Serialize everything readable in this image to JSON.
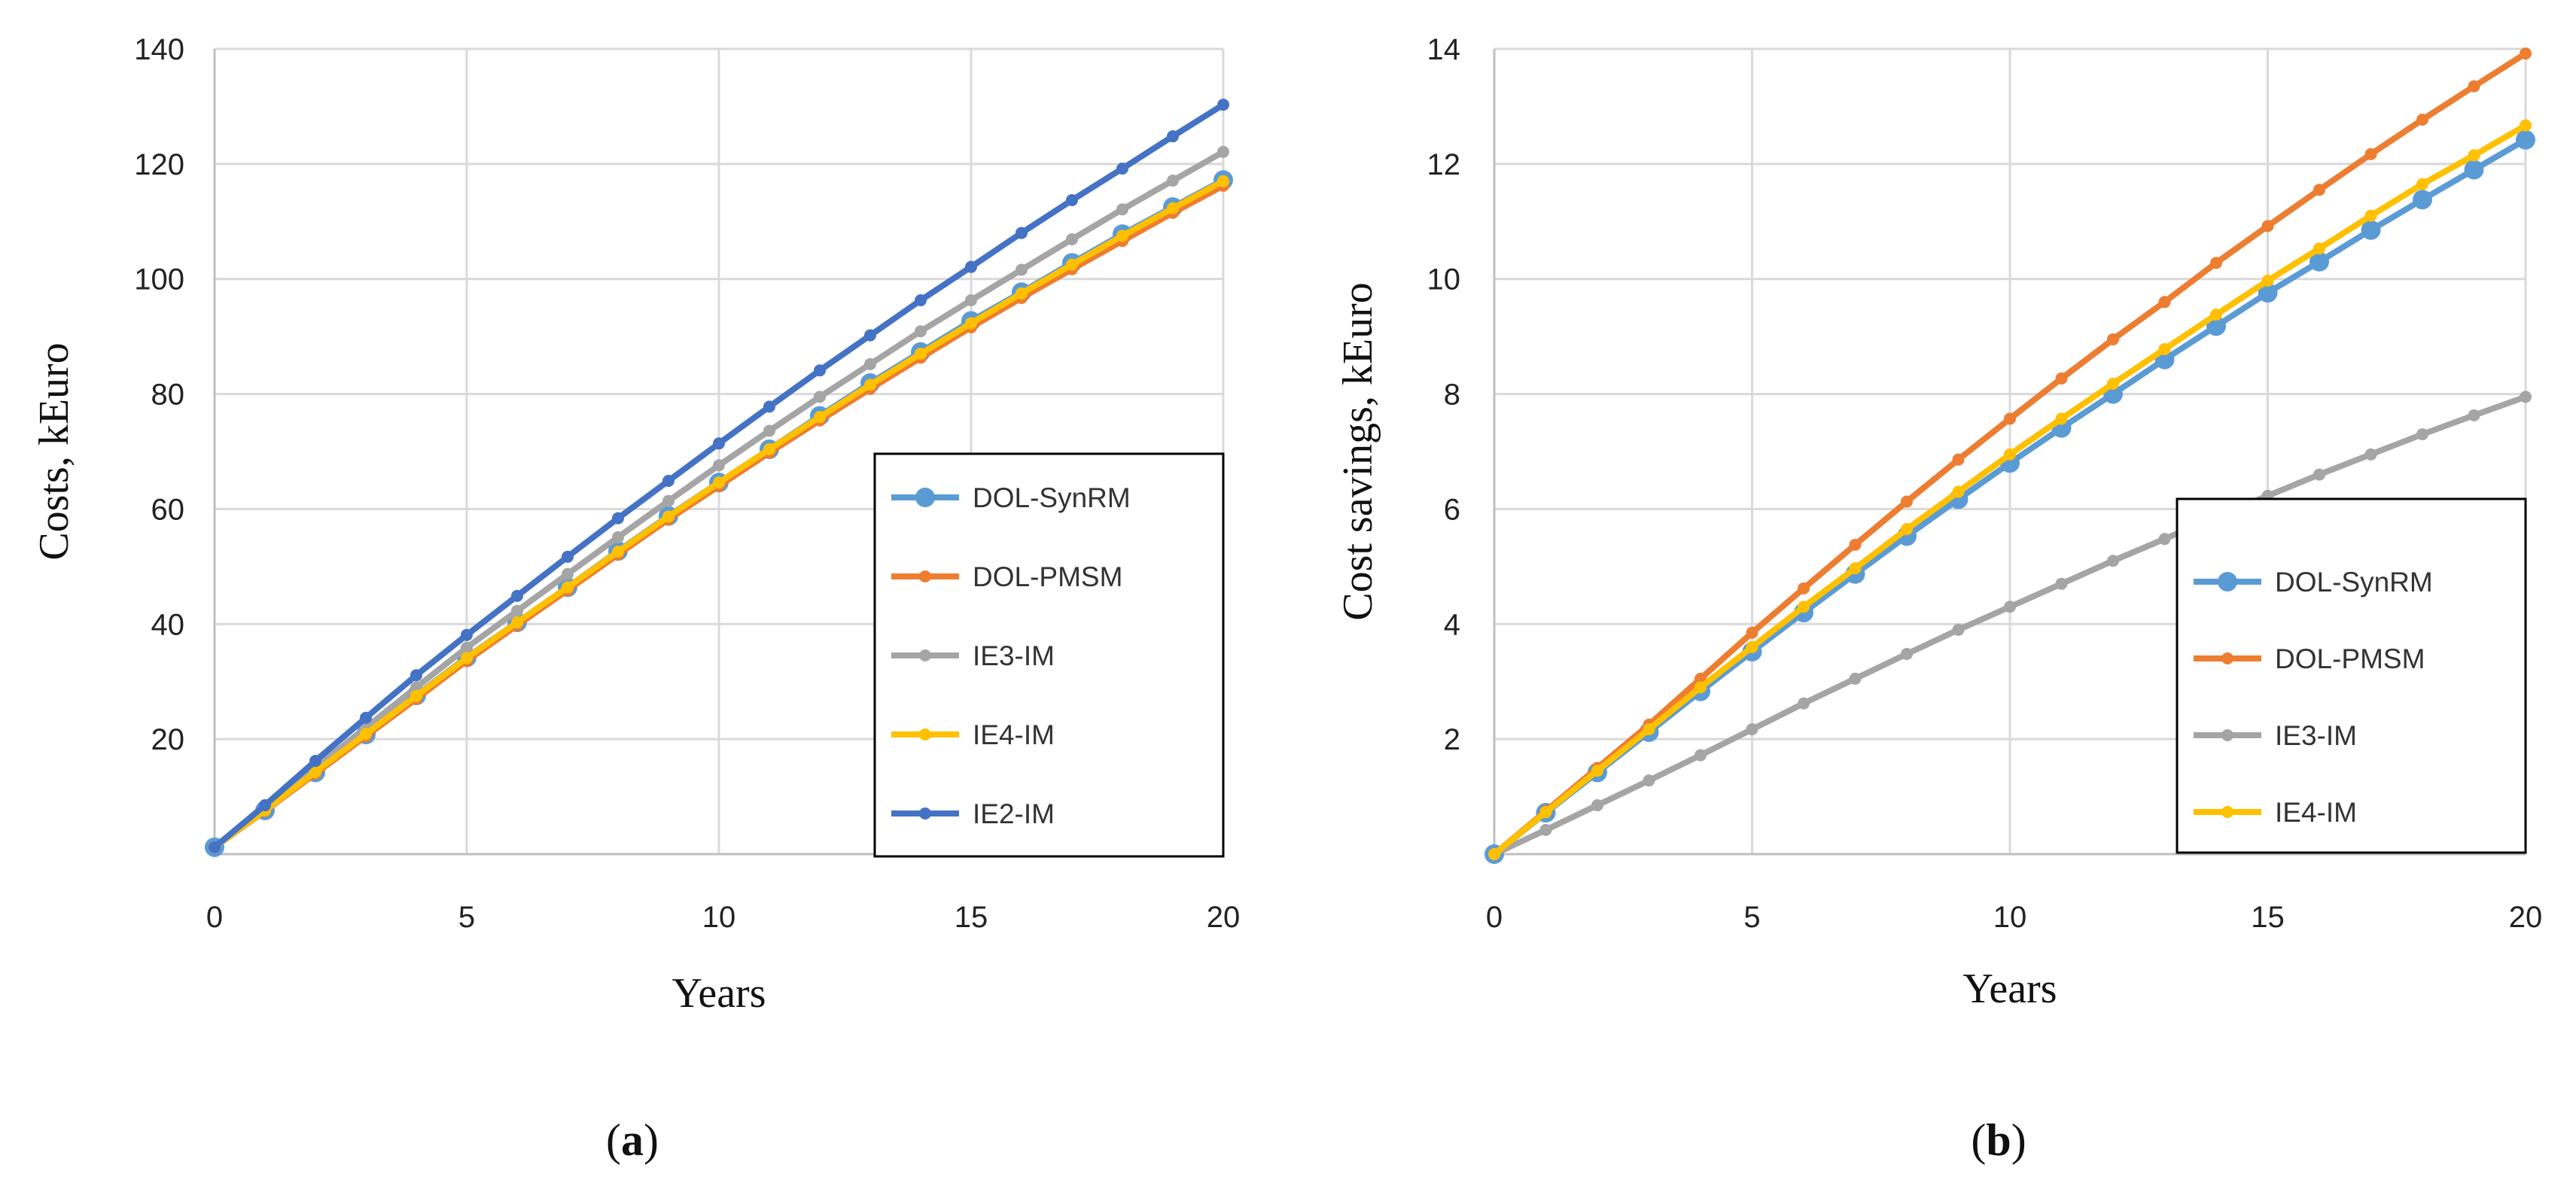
{
  "chart_data": [
    {
      "type": "line",
      "panel_label_open": "(",
      "panel_label_letter": "a",
      "panel_label_close": ")",
      "xlabel": "Years",
      "ylabel": "Costs, kEuro",
      "xlim": [
        0,
        20
      ],
      "ylim": [
        0,
        140
      ],
      "xticks": [
        0,
        5,
        10,
        15,
        20
      ],
      "yticks": [
        20,
        40,
        60,
        80,
        100,
        120,
        140
      ],
      "grid": true,
      "legend_position": "bottom-right",
      "x": [
        0,
        1,
        2,
        3,
        4,
        5,
        6,
        7,
        8,
        9,
        10,
        11,
        12,
        13,
        14,
        15,
        16,
        17,
        18,
        19,
        20
      ],
      "series": [
        {
          "name": "DOL-SynRM",
          "color": "#5B9BD5",
          "marker": "large-circle",
          "values": [
            1.2,
            7.6,
            14.2,
            20.8,
            27.6,
            34.2,
            40.3,
            46.4,
            52.7,
            58.8,
            64.6,
            70.4,
            76.2,
            81.9,
            87.3,
            92.7,
            97.7,
            102.8,
            107.8,
            112.5,
            117.2
          ]
        },
        {
          "name": "DOL-PMSM",
          "color": "#ED7D31",
          "marker": "small-circle",
          "values": [
            1.2,
            7.5,
            14.0,
            20.5,
            27.0,
            33.6,
            39.8,
            45.9,
            52.1,
            58.2,
            64.0,
            69.8,
            75.4,
            80.9,
            86.3,
            91.6,
            96.7,
            101.7,
            106.6,
            111.5,
            116.2
          ]
        },
        {
          "name": "IE3-IM",
          "color": "#A5A5A5",
          "marker": "small-circle",
          "values": [
            1.2,
            7.9,
            15.0,
            22.0,
            29.0,
            35.9,
            42.3,
            48.7,
            55.1,
            61.4,
            67.6,
            73.6,
            79.5,
            85.2,
            90.9,
            96.3,
            101.6,
            106.9,
            112.1,
            117.1,
            122.1
          ]
        },
        {
          "name": "IE4-IM",
          "color": "#FFC000",
          "marker": "small-circle",
          "values": [
            1.2,
            7.6,
            14.3,
            20.9,
            27.5,
            34.1,
            40.3,
            46.4,
            52.6,
            58.7,
            64.6,
            70.4,
            76.0,
            81.6,
            87.0,
            92.3,
            97.5,
            102.5,
            107.5,
            112.3,
            117.0
          ]
        },
        {
          "name": "IE2-IM",
          "color": "#4472C4",
          "marker": "small-circle",
          "values": [
            1.2,
            8.5,
            16.2,
            23.7,
            31.1,
            38.1,
            44.9,
            51.7,
            58.4,
            64.9,
            71.4,
            77.8,
            84.1,
            90.2,
            96.3,
            102.1,
            108.0,
            113.7,
            119.2,
            124.8,
            130.3
          ]
        }
      ]
    },
    {
      "type": "line",
      "panel_label_open": "(",
      "panel_label_letter": "b",
      "panel_label_close": ")",
      "xlabel": "Years",
      "ylabel": "Cost savings, kEuro",
      "xlim": [
        0,
        20
      ],
      "ylim": [
        0,
        14
      ],
      "xticks": [
        0,
        5,
        10,
        15,
        20
      ],
      "yticks": [
        2,
        4,
        6,
        8,
        10,
        12,
        14
      ],
      "grid": true,
      "legend_position": "bottom-right",
      "x": [
        0,
        1,
        2,
        3,
        4,
        5,
        6,
        7,
        8,
        9,
        10,
        11,
        12,
        13,
        14,
        15,
        16,
        17,
        18,
        19,
        20
      ],
      "series": [
        {
          "name": "DOL-SynRM",
          "color": "#5B9BD5",
          "marker": "large-circle",
          "values": [
            0,
            0.72,
            1.42,
            2.12,
            2.83,
            3.52,
            4.2,
            4.87,
            5.53,
            6.17,
            6.8,
            7.41,
            8.0,
            8.6,
            9.18,
            9.76,
            10.3,
            10.85,
            11.38,
            11.9,
            12.42
          ]
        },
        {
          "name": "DOL-PMSM",
          "color": "#ED7D31",
          "marker": "small-circle",
          "values": [
            0,
            0.75,
            1.5,
            2.25,
            3.05,
            3.85,
            4.62,
            5.38,
            6.13,
            6.86,
            7.57,
            8.27,
            8.95,
            9.6,
            10.28,
            10.92,
            11.55,
            12.17,
            12.77,
            13.35,
            13.92
          ]
        },
        {
          "name": "IE3-IM",
          "color": "#A5A5A5",
          "marker": "small-circle",
          "values": [
            0,
            0.42,
            0.85,
            1.28,
            1.72,
            2.17,
            2.62,
            3.05,
            3.48,
            3.9,
            4.3,
            4.7,
            5.1,
            5.48,
            5.87,
            6.23,
            6.6,
            6.95,
            7.3,
            7.63,
            7.95
          ]
        },
        {
          "name": "IE4-IM",
          "color": "#FFC000",
          "marker": "small-circle",
          "values": [
            0,
            0.73,
            1.45,
            2.17,
            2.9,
            3.6,
            4.3,
            4.97,
            5.65,
            6.3,
            6.95,
            7.57,
            8.18,
            8.78,
            9.38,
            9.97,
            10.53,
            11.1,
            11.65,
            12.15,
            12.67
          ]
        }
      ]
    }
  ]
}
